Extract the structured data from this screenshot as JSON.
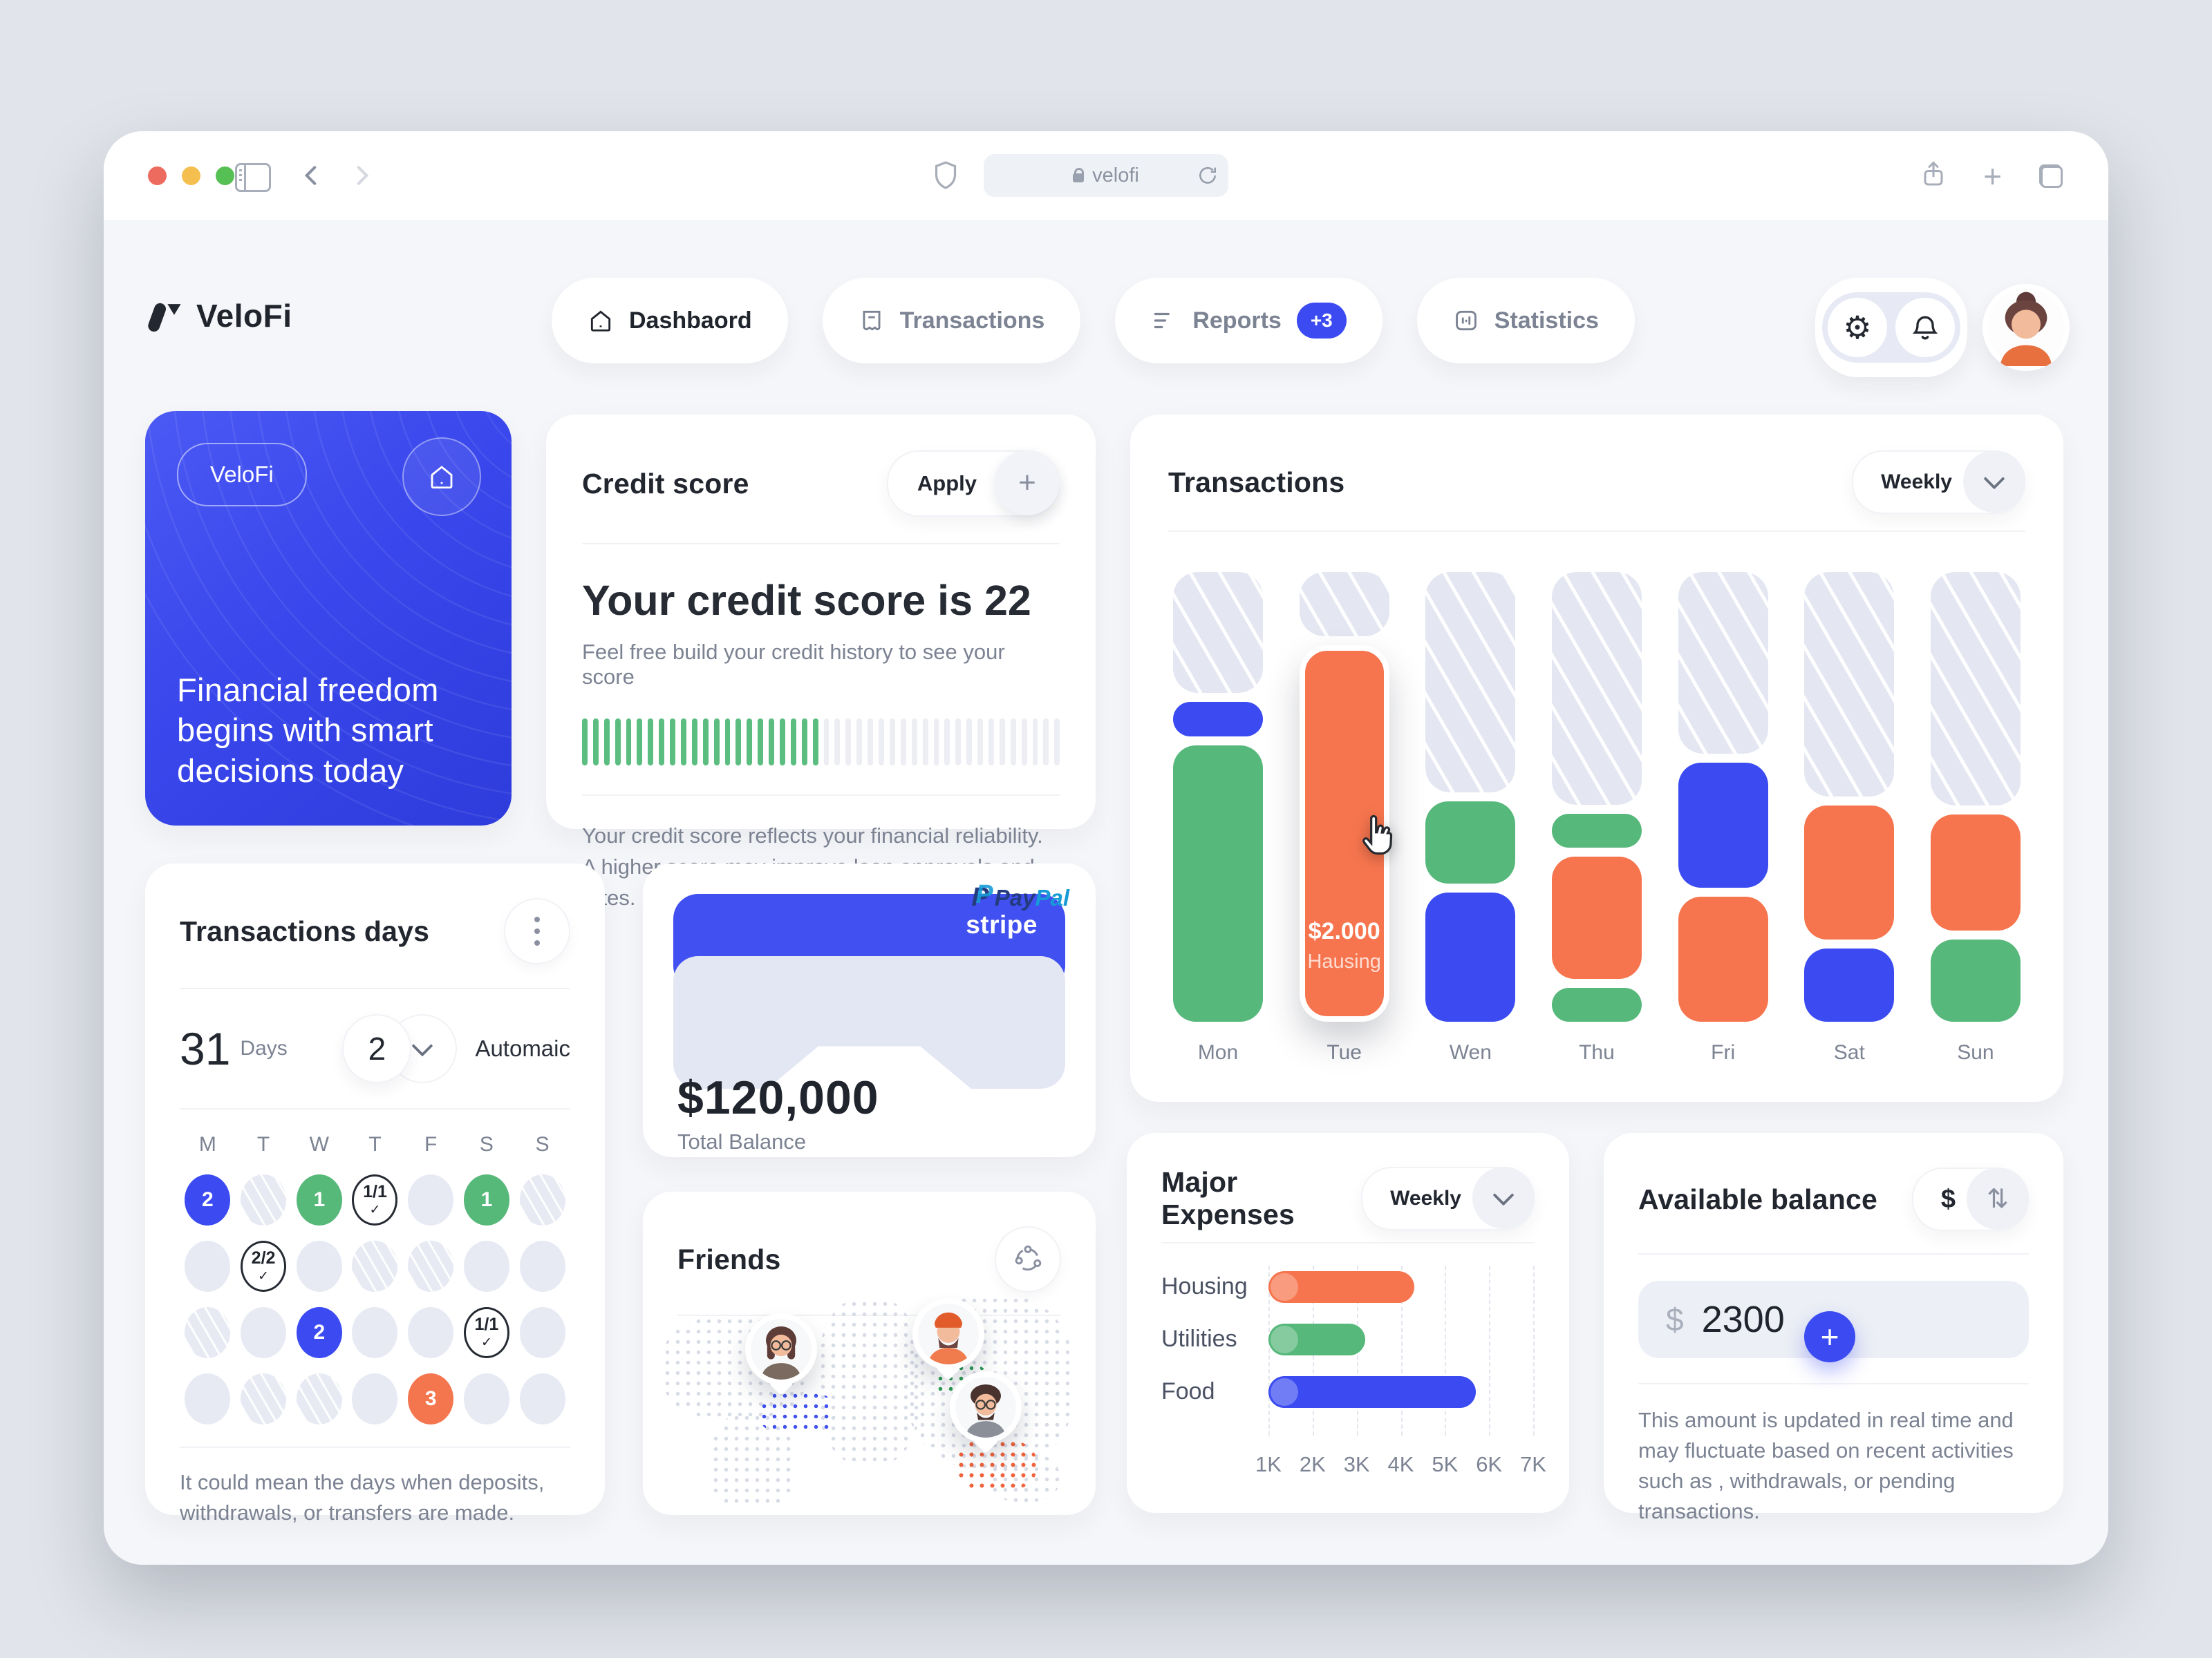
{
  "browser": {
    "url": "velofi",
    "traffic_lights": [
      "#ED6A5E",
      "#F5BF4F",
      "#57C054"
    ]
  },
  "header": {
    "brand": "VeloFi",
    "nav": [
      {
        "label": "Dashbaord",
        "active": true
      },
      {
        "label": "Transactions"
      },
      {
        "label": "Reports",
        "badge": "+3"
      },
      {
        "label": "Statistics"
      }
    ]
  },
  "promo": {
    "tag": "VeloFi",
    "headline": "Financial freedom begins with smart decisions today"
  },
  "credit_score": {
    "title": "Credit score",
    "apply_label": "Apply",
    "headline": "Your credit score is 22",
    "subtitle": "Feel free build your credit history to see your score",
    "bars_total": 44,
    "bars_filled": 22,
    "footnote": "Your credit score reflects your financial reliability. A higher score may improve loan approvals and rates."
  },
  "transactions": {
    "title": "Transactions",
    "range_label": "Weekly"
  },
  "days_card": {
    "title": "Transactions days",
    "days_value": "31",
    "days_label": "Days",
    "auto_value": "2",
    "auto_label": "Automaic",
    "weekdays": [
      "M",
      "T",
      "W",
      "T",
      "F",
      "S",
      "S"
    ],
    "footnote": "It could mean the days when deposits, withdrawals, or transfers are made."
  },
  "calendar_rows": [
    [
      {
        "t": "blue",
        "v": "2"
      },
      {
        "t": "hatch"
      },
      {
        "t": "green",
        "v": "1"
      },
      {
        "t": "outline",
        "v": "1/1",
        "check": true
      },
      {
        "t": "plain"
      },
      {
        "t": "green",
        "v": "1"
      },
      {
        "t": "hatch"
      }
    ],
    [
      {
        "t": "plain"
      },
      {
        "t": "outline",
        "v": "2/2",
        "check": true
      },
      {
        "t": "plain"
      },
      {
        "t": "hatch"
      },
      {
        "t": "hatch"
      },
      {
        "t": "plain"
      },
      {
        "t": "plain"
      }
    ],
    [
      {
        "t": "hatch"
      },
      {
        "t": "plain"
      },
      {
        "t": "blue",
        "v": "2"
      },
      {
        "t": "plain"
      },
      {
        "t": "plain"
      },
      {
        "t": "outline",
        "v": "1/1",
        "check": true
      },
      {
        "t": "plain"
      }
    ],
    [
      {
        "t": "plain"
      },
      {
        "t": "hatch"
      },
      {
        "t": "hatch"
      },
      {
        "t": "plain"
      },
      {
        "t": "orange",
        "v": "3"
      },
      {
        "t": "plain"
      },
      {
        "t": "plain"
      }
    ]
  ],
  "balance_card": {
    "brand_top": "stripe",
    "brand_pay": "Pay",
    "brand_pal": "Pal",
    "amount": "$120,000",
    "label": "Total Balance"
  },
  "friends": {
    "title": "Friends"
  },
  "expenses": {
    "title": "Major Expenses",
    "range_label": "Weekly"
  },
  "available": {
    "title": "Available balance",
    "currency_label": "$",
    "input_prefix": "$",
    "input_value": "2300",
    "note": "This amount is updated in real time and may fluctuate based on recent activities such as , withdrawals, or pending transactions."
  },
  "chart_data": [
    {
      "type": "bar",
      "variant": "stacked-columns",
      "title": "Transactions",
      "range": "Weekly",
      "categories": [
        "Mon",
        "Tue",
        "Wen",
        "Thu",
        "Fri",
        "Sat",
        "Sun"
      ],
      "unit": "pct = percent of column height, segments listed top to bottom; placeholder = hatched empty capacity",
      "columns": [
        {
          "day": "Mon",
          "segments": [
            {
              "kind": "placeholder",
              "pct": 28
            },
            {
              "kind": "blue",
              "pct": 8
            },
            {
              "kind": "green",
              "pct": 64
            }
          ]
        },
        {
          "day": "Tue",
          "highlight": true,
          "tooltip": {
            "value": "$2.000",
            "label": "Hausing"
          },
          "segments": [
            {
              "kind": "placeholder",
              "pct": 15
            },
            {
              "kind": "orange",
              "pct": 85
            }
          ]
        },
        {
          "day": "Wen",
          "segments": [
            {
              "kind": "placeholder",
              "pct": 51
            },
            {
              "kind": "green",
              "pct": 19
            },
            {
              "kind": "blue",
              "pct": 30
            }
          ]
        },
        {
          "day": "Thu",
          "segments": [
            {
              "kind": "placeholder",
              "pct": 55
            },
            {
              "kind": "green",
              "pct": 8
            },
            {
              "kind": "orange",
              "pct": 29
            },
            {
              "kind": "green",
              "pct": 8
            }
          ]
        },
        {
          "day": "Fri",
          "segments": [
            {
              "kind": "placeholder",
              "pct": 42
            },
            {
              "kind": "blue",
              "pct": 29
            },
            {
              "kind": "orange",
              "pct": 29
            }
          ]
        },
        {
          "day": "Sat",
          "segments": [
            {
              "kind": "placeholder",
              "pct": 52
            },
            {
              "kind": "orange",
              "pct": 31
            },
            {
              "kind": "blue",
              "pct": 17
            }
          ]
        },
        {
          "day": "Sun",
          "segments": [
            {
              "kind": "placeholder",
              "pct": 54
            },
            {
              "kind": "orange",
              "pct": 27
            },
            {
              "kind": "green",
              "pct": 19
            }
          ]
        }
      ],
      "colors": {
        "blue": "#3B4BF1",
        "green": "#57B87B",
        "orange": "#F6754E",
        "placeholder": "#E4E7F2"
      }
    },
    {
      "type": "bar",
      "orientation": "horizontal",
      "title": "Major Expenses",
      "categories": [
        "Housing",
        "Utilities",
        "Food"
      ],
      "values": [
        4300,
        3200,
        5700
      ],
      "bar_colors": [
        "#F6754E",
        "#57B87B",
        "#3B4BF1"
      ],
      "x_ticks": [
        "1K",
        "2K",
        "3K",
        "4K",
        "5K",
        "6K",
        "7K"
      ],
      "xlim": [
        1000,
        7000
      ],
      "grid": "dashed vertical",
      "note": "bars start at the 1K gridline"
    }
  ],
  "colors": {
    "accent_blue": "#3B4BF1",
    "green": "#57B87B",
    "orange": "#F6754E",
    "page_bg": "#E1E4EA",
    "content_bg": "#F5F6F9",
    "card_bg": "#FFFFFF",
    "text_dark": "#21252E",
    "text_gray": "#7B8292"
  },
  "icons": {
    "gear-icon": "⚙",
    "sort-icon": "⇅",
    "plus-icon": "+",
    "kebab-icon": "⋮",
    "check-mark": "✓"
  }
}
